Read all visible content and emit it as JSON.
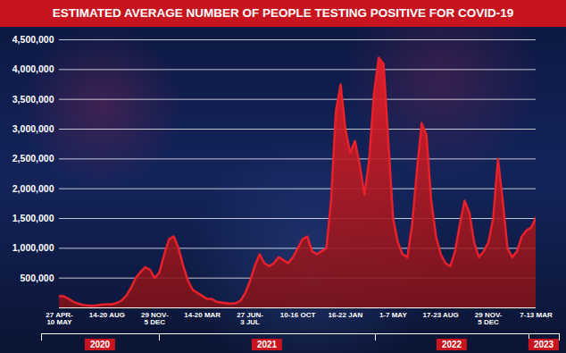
{
  "chart_data": {
    "type": "area",
    "title": "ESTIMATED AVERAGE NUMBER OF PEOPLE TESTING POSITIVE FOR COVID-19",
    "categories": [
      "27 APR-10 MAY",
      null,
      null,
      null,
      null,
      null,
      null,
      null,
      null,
      null,
      "14-20 AUG",
      null,
      null,
      null,
      null,
      null,
      null,
      null,
      null,
      null,
      "29 NOV-5 DEC",
      null,
      null,
      null,
      null,
      null,
      null,
      null,
      null,
      null,
      "14-20 MAR",
      null,
      null,
      null,
      null,
      null,
      null,
      null,
      null,
      null,
      "27 JUN-3 JUL",
      null,
      null,
      null,
      null,
      null,
      null,
      null,
      null,
      null,
      "10-16 OCT",
      null,
      null,
      null,
      null,
      null,
      null,
      null,
      null,
      null,
      "16-22 JAN",
      null,
      null,
      null,
      null,
      null,
      null,
      null,
      null,
      null,
      "1-7 MAY",
      null,
      null,
      null,
      null,
      null,
      null,
      null,
      null,
      null,
      "17-23 AUG",
      null,
      null,
      null,
      null,
      null,
      null,
      null,
      null,
      null,
      "29 NOV-5 DEC",
      null,
      null,
      null,
      null,
      null,
      null,
      null,
      null,
      null,
      "7-13 MAR"
    ],
    "values": [
      200000,
      190000,
      150000,
      100000,
      70000,
      50000,
      40000,
      35000,
      45000,
      55000,
      60000,
      60000,
      80000,
      120000,
      200000,
      330000,
      500000,
      600000,
      680000,
      640000,
      500000,
      600000,
      900000,
      1150000,
      1200000,
      1000000,
      700000,
      450000,
      300000,
      250000,
      200000,
      150000,
      150000,
      100000,
      90000,
      80000,
      70000,
      80000,
      120000,
      250000,
      450000,
      700000,
      900000,
      750000,
      700000,
      750000,
      850000,
      800000,
      750000,
      850000,
      1000000,
      1150000,
      1200000,
      950000,
      900000,
      950000,
      1000000,
      1800000,
      3300000,
      3750000,
      3000000,
      2600000,
      2800000,
      2400000,
      1900000,
      2500000,
      3600000,
      4200000,
      4100000,
      2800000,
      1500000,
      1100000,
      900000,
      850000,
      1400000,
      2300000,
      3100000,
      2900000,
      1800000,
      1200000,
      900000,
      750000,
      700000,
      950000,
      1400000,
      1800000,
      1600000,
      1100000,
      850000,
      950000,
      1100000,
      1500000,
      2500000,
      1800000,
      1000000,
      850000,
      950000,
      1200000,
      1300000,
      1350000,
      1520000
    ],
    "color": "#e8202a",
    "ylim": [
      0,
      4500000
    ],
    "yticks": [
      {
        "value": 500000,
        "label": "500,000"
      },
      {
        "value": 1000000,
        "label": "1,000,000"
      },
      {
        "value": 1500000,
        "label": "1,500,000"
      },
      {
        "value": 2000000,
        "label": "2,000,000"
      },
      {
        "value": 2500000,
        "label": "2,500,000"
      },
      {
        "value": 3000000,
        "label": "3,000,000"
      },
      {
        "value": 3500000,
        "label": "3,500,000"
      },
      {
        "value": 4000000,
        "label": "4,000,000"
      },
      {
        "value": 4500000,
        "label": "4,500,000"
      }
    ],
    "grid": true,
    "year_labels": [
      "2020",
      "2021",
      "2022",
      "2023"
    ]
  }
}
